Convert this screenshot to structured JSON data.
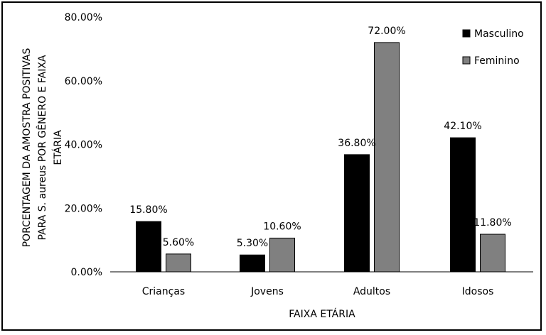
{
  "chart_data": {
    "type": "bar",
    "categories": [
      "Crianças",
      "Jovens",
      "Adultos",
      "Idosos"
    ],
    "series": [
      {
        "name": "Masculino",
        "values": [
          15.8,
          5.3,
          36.8,
          42.1
        ],
        "labels": [
          "15.80%",
          "5.30%",
          "36.80%",
          "42.10%"
        ],
        "color": "#000000"
      },
      {
        "name": "Feminino",
        "values": [
          5.6,
          10.6,
          72.0,
          11.8
        ],
        "labels": [
          "5.60%",
          "10.60%",
          "72.00%",
          "11.80%"
        ],
        "color": "#808080"
      }
    ],
    "y_ticks": [
      "0.00%",
      "20.00%",
      "40.00%",
      "60.00%",
      "80.00%"
    ],
    "ylim": [
      0,
      80
    ],
    "xlabel": "FAIXA ETÁRIA",
    "ylabel_lines": [
      "PORCENTAGEM DA AMOSTRA POSITIVAS",
      "PARA S. aureus POR GÊNERO E FAIXA",
      "ETÁRIA"
    ],
    "legend_position": "top-right",
    "grid": false
  }
}
